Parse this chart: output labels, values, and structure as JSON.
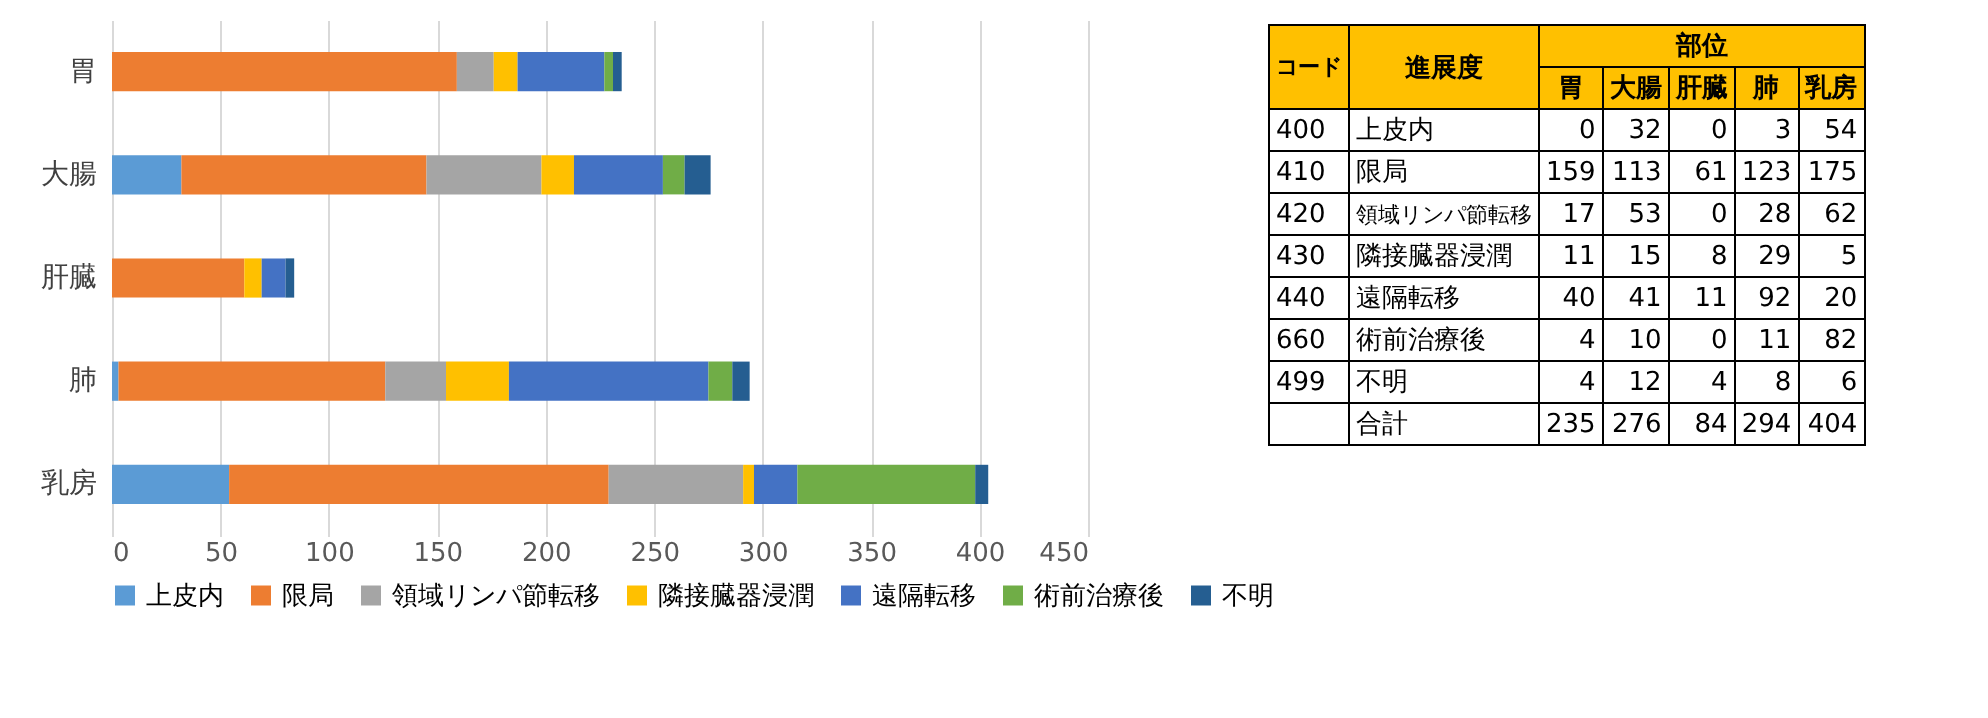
{
  "chart_data": [
    {
      "type": "bar",
      "orientation": "horizontal",
      "stacked": true,
      "categories": [
        "胃",
        "大腸",
        "肝臓",
        "肺",
        "乳房"
      ],
      "series": [
        {
          "name": "上皮内",
          "color": "#5b9bd5",
          "values": [
            0,
            32,
            0,
            3,
            54
          ]
        },
        {
          "name": "限局",
          "color": "#ed7d31",
          "values": [
            159,
            113,
            61,
            123,
            175
          ]
        },
        {
          "name": "領域リンパ節転移",
          "color": "#a5a5a5",
          "values": [
            17,
            53,
            0,
            28,
            62
          ]
        },
        {
          "name": "隣接臓器浸潤",
          "color": "#ffc000",
          "values": [
            11,
            15,
            8,
            29,
            5
          ]
        },
        {
          "name": "遠隔転移",
          "color": "#4472c4",
          "values": [
            40,
            41,
            11,
            92,
            20
          ]
        },
        {
          "name": "術前治療後",
          "color": "#70ad47",
          "values": [
            4,
            10,
            0,
            11,
            82
          ]
        },
        {
          "name": "不明",
          "color": "#255e91",
          "values": [
            4,
            12,
            4,
            8,
            6
          ]
        }
      ],
      "xlim": [
        0,
        450
      ],
      "xticks": [
        0,
        50,
        100,
        150,
        200,
        250,
        300,
        350,
        400,
        450
      ],
      "grid": "x",
      "legend": "bottom"
    },
    {
      "type": "heatmap",
      "data_labels": true,
      "xlabel": "部位",
      "ylabel": "進展度",
      "y2label": "コード",
      "categories": [
        "胃",
        "大腸",
        "肝臓",
        "肺",
        "乳房"
      ],
      "y_categories": [
        "上皮内",
        "限局",
        "領域リンパ節転移",
        "隣接臓器浸潤",
        "遠隔転移",
        "術前治療後",
        "不明",
        "合計"
      ],
      "y2_categories": [
        "400",
        "410",
        "420",
        "430",
        "440",
        "660",
        "499",
        null
      ],
      "cells": [
        [
          0,
          32,
          0,
          3,
          54
        ],
        [
          159,
          113,
          61,
          123,
          175
        ],
        [
          17,
          53,
          0,
          28,
          62
        ],
        [
          11,
          15,
          8,
          29,
          5
        ],
        [
          40,
          41,
          11,
          92,
          20
        ],
        [
          4,
          10,
          0,
          11,
          82
        ],
        [
          4,
          12,
          4,
          8,
          6
        ],
        [
          235,
          276,
          84,
          294,
          404
        ]
      ]
    }
  ]
}
